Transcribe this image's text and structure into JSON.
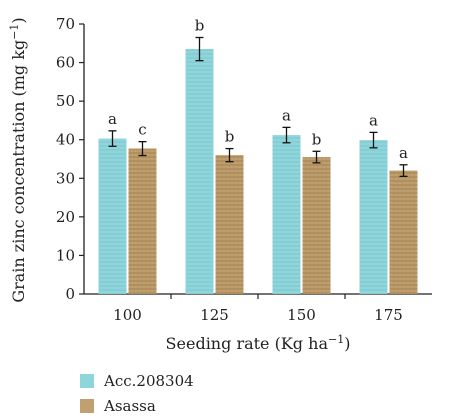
{
  "chart_data": {
    "type": "bar",
    "xlabel": "Seeding rate (Kg ha",
    "xlabel_sup": "−1",
    "xlabel_end": ")",
    "ylabel": "Grain zinc concentration (mg kg",
    "ylabel_sup": "−1",
    "ylabel_end": ")",
    "categories": [
      "100",
      "125",
      "150",
      "175"
    ],
    "ylim": [
      0,
      70
    ],
    "yticks": [
      0,
      10,
      20,
      30,
      40,
      50,
      60,
      70
    ],
    "series": [
      {
        "name": "Acc.208304",
        "color": "#86d2d8",
        "values": [
          40.3,
          63.5,
          41.2,
          39.9
        ],
        "errors": [
          2.0,
          3.0,
          2.0,
          2.0
        ],
        "letters": [
          "a",
          "b",
          "a",
          "a"
        ]
      },
      {
        "name": "Asassa",
        "color": "#b99563",
        "values": [
          37.7,
          36.0,
          35.5,
          32.0
        ],
        "errors": [
          1.8,
          1.7,
          1.5,
          1.5
        ],
        "letters": [
          "c",
          "b",
          "b",
          "a"
        ]
      }
    ]
  }
}
